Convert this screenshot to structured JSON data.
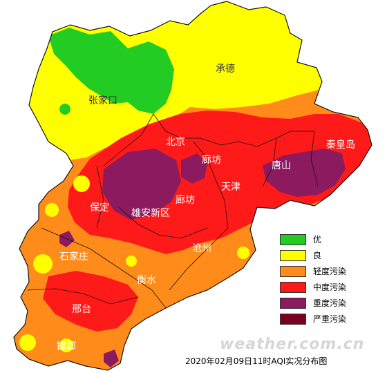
{
  "caption": "2020年02月09日11时AQI实况分布图",
  "watermark": "weather.com.cn",
  "cities": [
    {
      "name": "张家口"
    },
    {
      "name": "承德"
    },
    {
      "name": "北京"
    },
    {
      "name": "廊坊"
    },
    {
      "name": "秦皇岛"
    },
    {
      "name": "唐山"
    },
    {
      "name": "天津"
    },
    {
      "name": "保定"
    },
    {
      "name": "雄安新区"
    },
    {
      "name": "廊坊"
    },
    {
      "name": "沧州"
    },
    {
      "name": "石家庄"
    },
    {
      "name": "衡水"
    },
    {
      "name": "邢台"
    },
    {
      "name": "邯郸"
    }
  ],
  "legend": [
    {
      "label": "优",
      "color": "#22cc22"
    },
    {
      "label": "良",
      "color": "#ffff00"
    },
    {
      "label": "轻度污染",
      "color": "#ff8c1a"
    },
    {
      "label": "中度污染",
      "color": "#ff1a1a"
    },
    {
      "label": "重度污染",
      "color": "#8b1a5e"
    },
    {
      "label": "严重污染",
      "color": "#7a0022"
    }
  ]
}
